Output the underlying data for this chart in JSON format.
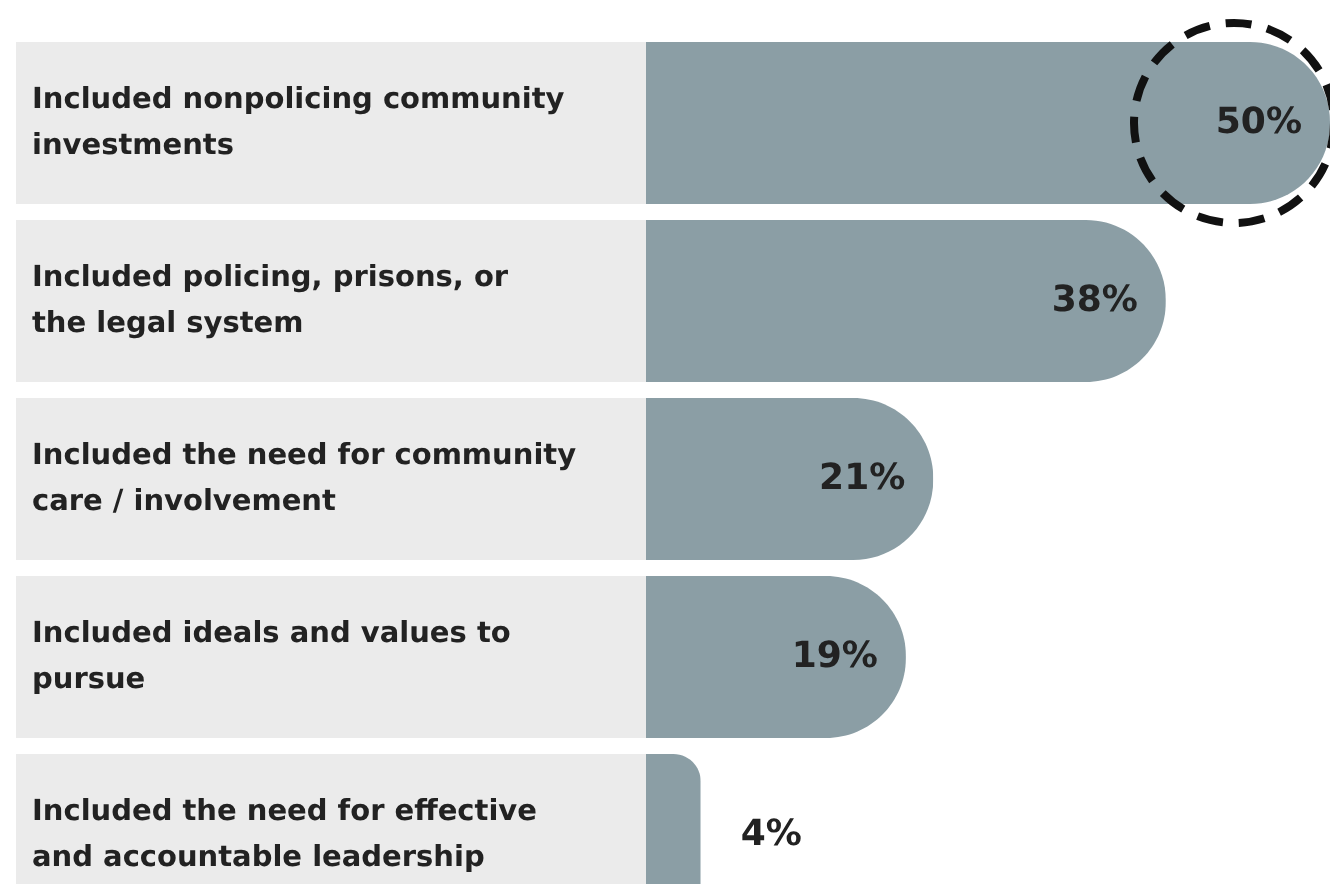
{
  "chart_data": {
    "type": "bar",
    "orientation": "horizontal",
    "categories": [
      "Included nonpolicing community investments",
      "Included policing, prisons, or the legal system",
      "Included the need for community care / involvement",
      "Included ideals and values to pursue",
      "Included the need for effective and accountable leadership"
    ],
    "values": [
      50,
      38,
      21,
      19,
      4
    ],
    "value_labels": [
      "50%",
      "38%",
      "21%",
      "19%",
      "4%"
    ],
    "color": "#8b9ea5"
  }
}
